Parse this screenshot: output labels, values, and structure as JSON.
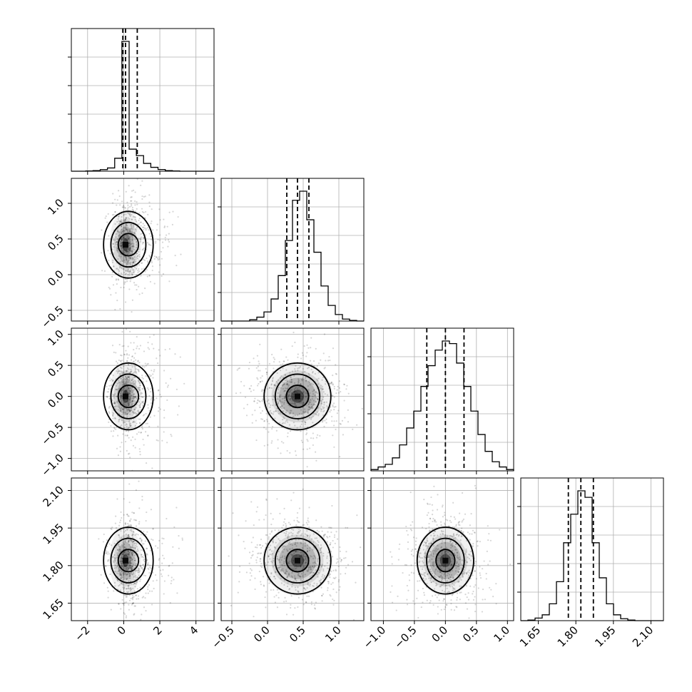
{
  "chart_data": {
    "type": "corner",
    "grid": true,
    "ticks": {
      "p0": [
        "−2",
        "0",
        "2",
        "4"
      ],
      "p1": [
        "−0.5",
        "0.0",
        "0.5",
        "1.0"
      ],
      "p2": [
        "−1.0",
        "−0.5",
        "0.0",
        "0.5",
        "1.0"
      ],
      "p3": [
        "1.65",
        "1.80",
        "1.95",
        "2.10"
      ]
    },
    "parameters": [
      {
        "xlim": [
          -2.9,
          5.0
        ],
        "tick_values": [
          -2,
          0,
          2,
          4
        ],
        "quantiles": [
          -0.05,
          0.1,
          0.75
        ],
        "center": 0.1,
        "hist_bins": [
          -2.9,
          -2.5,
          -2.1,
          -1.7,
          -1.3,
          -0.9,
          -0.5,
          -0.1,
          0.3,
          0.7,
          1.1,
          1.5,
          1.9,
          2.3,
          2.7,
          3.1,
          3.5,
          3.9,
          4.3,
          4.7,
          5.0
        ],
        "hist_counts": [
          0.0,
          0.0,
          0.002,
          0.005,
          0.012,
          0.025,
          0.1,
          1.0,
          0.17,
          0.12,
          0.06,
          0.03,
          0.013,
          0.005,
          0.002,
          0.0,
          0.0,
          0.0,
          0.0,
          0.0
        ]
      },
      {
        "xlim": [
          -0.65,
          1.35
        ],
        "tick_values": [
          -0.5,
          0.0,
          0.5,
          1.0
        ],
        "quantiles": [
          0.27,
          0.42,
          0.58
        ],
        "center": 0.42,
        "hist_bins": [
          -0.65,
          -0.55,
          -0.45,
          -0.35,
          -0.25,
          -0.15,
          -0.05,
          0.05,
          0.15,
          0.25,
          0.35,
          0.45,
          0.55,
          0.65,
          0.75,
          0.85,
          0.95,
          1.05,
          1.15,
          1.25,
          1.35
        ],
        "hist_counts": [
          0.0,
          0.0,
          0.0,
          0.0,
          0.01,
          0.03,
          0.07,
          0.17,
          0.35,
          0.62,
          0.93,
          1.0,
          0.78,
          0.53,
          0.27,
          0.12,
          0.05,
          0.015,
          0.005,
          0.0
        ]
      },
      {
        "xlim": [
          -1.2,
          1.1
        ],
        "tick_values": [
          -1.0,
          -0.5,
          0.0,
          0.5,
          1.0
        ],
        "quantiles": [
          -0.3,
          0.0,
          0.3
        ],
        "center": 0.0,
        "hist_bins": [
          -1.2,
          -1.085,
          -0.97,
          -0.855,
          -0.74,
          -0.625,
          -0.51,
          -0.395,
          -0.28,
          -0.165,
          -0.05,
          0.065,
          0.18,
          0.295,
          0.41,
          0.525,
          0.64,
          0.755,
          0.87,
          0.985,
          1.1
        ],
        "hist_counts": [
          0.01,
          0.03,
          0.05,
          0.1,
          0.2,
          0.33,
          0.46,
          0.65,
          0.81,
          0.93,
          1.0,
          0.98,
          0.83,
          0.65,
          0.46,
          0.28,
          0.15,
          0.07,
          0.03,
          0.01
        ]
      },
      {
        "xlim": [
          1.58,
          2.15
        ],
        "tick_values": [
          1.65,
          1.8,
          1.95,
          2.1
        ],
        "quantiles": [
          1.77,
          1.82,
          1.87
        ],
        "center": 1.82,
        "hist_bins": [
          1.58,
          1.6085,
          1.637,
          1.6655,
          1.694,
          1.7225,
          1.751,
          1.7795,
          1.808,
          1.8365,
          1.865,
          1.8935,
          1.922,
          1.9505,
          1.979,
          2.0075,
          2.036,
          2.0645,
          2.093,
          2.1215,
          2.15
        ],
        "hist_counts": [
          0.0,
          0.005,
          0.02,
          0.045,
          0.13,
          0.3,
          0.6,
          0.82,
          1.0,
          0.95,
          0.6,
          0.33,
          0.13,
          0.045,
          0.015,
          0.005,
          0.0,
          0.0,
          0.0,
          0.0
        ]
      }
    ]
  }
}
